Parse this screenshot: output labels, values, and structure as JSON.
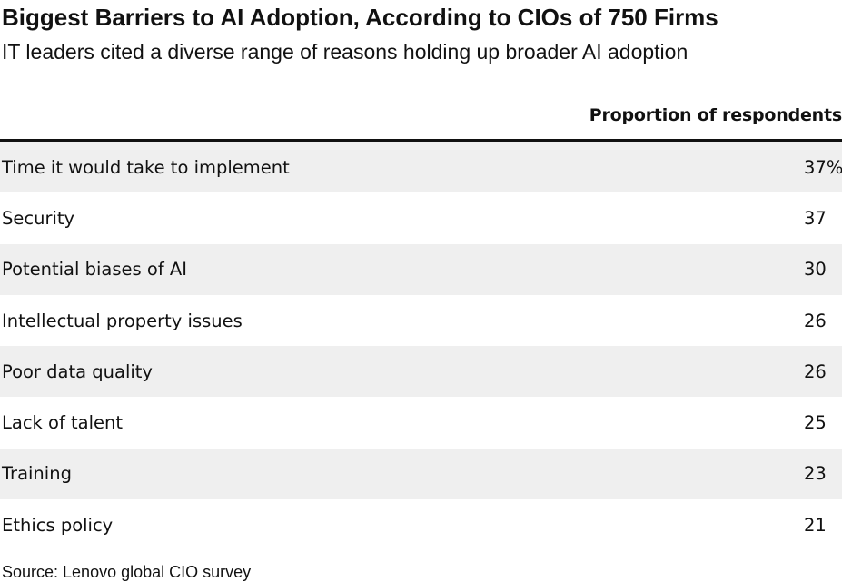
{
  "title": "Biggest Barriers to AI Adoption, According to CIOs of 750 Firms",
  "subtitle": "IT leaders cited a diverse range of reasons holding up broader AI adoption",
  "source": "Source: Lenovo global CIO survey",
  "colors": {
    "text": "#111111",
    "row_shade": "#efefef",
    "rule": "#111111"
  },
  "chart_data": {
    "type": "table",
    "title": "Biggest Barriers to AI Adoption, According to CIOs of 750 Firms",
    "subtitle": "IT leaders cited a diverse range of reasons holding up broader AI adoption",
    "columns": [
      "",
      "Proportion of respondents"
    ],
    "rows": [
      {
        "label": "Time it would take to implement",
        "value": 37,
        "display": "37%"
      },
      {
        "label": "Security",
        "value": 37,
        "display": "37"
      },
      {
        "label": "Potential biases of AI",
        "value": 30,
        "display": "30"
      },
      {
        "label": "Intellectual property issues",
        "value": 26,
        "display": "26"
      },
      {
        "label": "Poor data quality",
        "value": 26,
        "display": "26"
      },
      {
        "label": "Lack of talent",
        "value": 25,
        "display": "25"
      },
      {
        "label": "Training",
        "value": 23,
        "display": "23"
      },
      {
        "label": "Ethics policy",
        "value": 21,
        "display": "21"
      }
    ],
    "unit": "%",
    "source": "Source: Lenovo global CIO survey"
  }
}
